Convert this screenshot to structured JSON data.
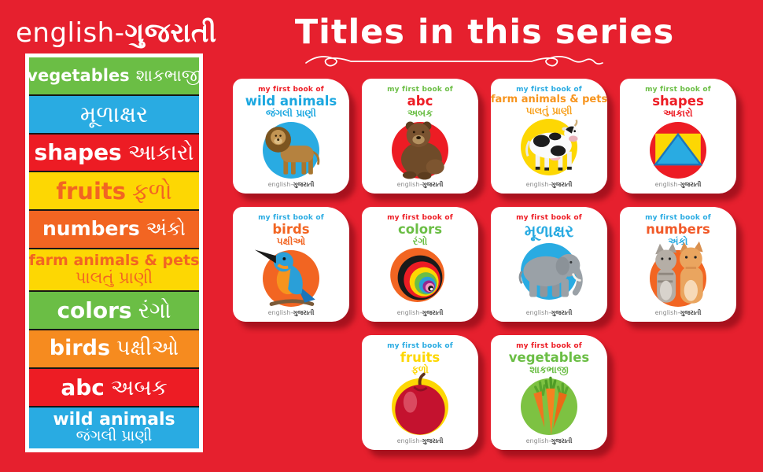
{
  "sidebar": {
    "header_en": "english-",
    "header_gu": "ગુજરાતી",
    "rows": [
      {
        "id": "vegetables",
        "en": "vegetables",
        "gu": "શાકભાજી",
        "bg": "#6bbe45",
        "color": "#ffffff",
        "two_line": false
      },
      {
        "id": "gujarati-alphabet",
        "en": "",
        "gu": "મૂળાક્ષર",
        "bg": "#29abe2",
        "color": "#ffffff",
        "two_line": false
      },
      {
        "id": "shapes",
        "en": "shapes",
        "gu": "આકારો",
        "bg": "#ed1c24",
        "color": "#ffffff",
        "two_line": false
      },
      {
        "id": "fruits",
        "en": "fruits",
        "gu": "ફળો",
        "bg": "#fdd703",
        "color": "#f26522",
        "two_line": false
      },
      {
        "id": "numbers",
        "en": "numbers",
        "gu": "અંકો",
        "bg": "#f26522",
        "color": "#ffffff",
        "two_line": false
      },
      {
        "id": "farm-animals-pets",
        "en": "farm animals & pets",
        "gu": "પાલતું પ્રાણી",
        "bg": "#fdd703",
        "color": "#f26522",
        "two_line": true
      },
      {
        "id": "colors",
        "en": "colors",
        "gu": "રંગો",
        "bg": "#6bbe45",
        "color": "#ffffff",
        "two_line": false
      },
      {
        "id": "birds",
        "en": "birds",
        "gu": "પક્ષીઓ",
        "bg": "#f68b1f",
        "color": "#ffffff",
        "two_line": false
      },
      {
        "id": "abc",
        "en": "abc",
        "gu": "અબક",
        "bg": "#ed1c24",
        "color": "#ffffff",
        "two_line": false
      },
      {
        "id": "wild-animals",
        "en": "wild animals",
        "gu": "જંગલી પ્રાણી",
        "bg": "#29abe2",
        "color": "#ffffff",
        "two_line": true
      }
    ]
  },
  "main": {
    "title": "Titles in this series",
    "book_footer_en": "english-",
    "book_footer_gu": "ગુજરાતી",
    "books": [
      {
        "id": "wild-animals",
        "tagline": "my first book of",
        "tagline_color": "#ed1c24",
        "title": "wild animals",
        "title_color": "#1ba7e0",
        "subtitle": "જંગલી પ્રાણી",
        "subtitle_color": "#1ba7e0",
        "circle_color": "#29abe2",
        "image": "lion"
      },
      {
        "id": "abc",
        "tagline": "my first book of",
        "tagline_color": "#6bbe45",
        "title": "abc",
        "title_color": "#ed1c24",
        "subtitle": "અબક",
        "subtitle_color": "#6bbe45",
        "circle_color": "#ed1c24",
        "image": "bear"
      },
      {
        "id": "farm-animals-pets",
        "tagline": "my first book of",
        "tagline_color": "#29abe2",
        "title": "farm animals & pets",
        "title_color": "#f7941d",
        "subtitle": "પાલતું પ્રાણી",
        "subtitle_color": "#f7a01d",
        "circle_color": "#fdd703",
        "image": "cow",
        "small_title": true
      },
      {
        "id": "shapes",
        "tagline": "my first book of",
        "tagline_color": "#6bbe45",
        "title": "shapes",
        "title_color": "#ed1c24",
        "subtitle": "આકારો",
        "subtitle_color": "#ed1c24",
        "circle_color": "#ed1c24",
        "image": "shapes"
      },
      {
        "id": "birds",
        "tagline": "my first book of",
        "tagline_color": "#29abe2",
        "title": "birds",
        "title_color": "#f26522",
        "subtitle": "પક્ષીઓ",
        "subtitle_color": "#f26522",
        "circle_color": "#f26522",
        "image": "kingfisher"
      },
      {
        "id": "colors",
        "tagline": "my first book of",
        "tagline_color": "#ed1c24",
        "title": "colors",
        "title_color": "#6bbe45",
        "subtitle": "રંગો",
        "subtitle_color": "#6bbe45",
        "circle_color": "none",
        "image": "color-rings"
      },
      {
        "id": "gujarati-alphabet",
        "tagline": "my first book of",
        "tagline_color": "#ed1c24",
        "title": "મૂળાક્ષર",
        "title_color": "#29abe2",
        "subtitle": "",
        "subtitle_color": "#29abe2",
        "circle_color": "#29abe2",
        "image": "elephant",
        "big_title": true
      },
      {
        "id": "numbers",
        "tagline": "my first book of",
        "tagline_color": "#29abe2",
        "title": "numbers",
        "title_color": "#f15a29",
        "subtitle": "અંકો",
        "subtitle_color": "#29abe2",
        "circle_color": "#f26522",
        "image": "kittens"
      },
      {
        "id": "fruits",
        "tagline": "my first book of",
        "tagline_color": "#29abe2",
        "title": "fruits",
        "title_color": "#fdd703",
        "subtitle": "ફળો",
        "subtitle_color": "#fdd703",
        "circle_color": "#fdd703",
        "image": "apple",
        "grid": {
          "row": 3,
          "col": 2
        }
      },
      {
        "id": "vegetables",
        "tagline": "my first book of",
        "tagline_color": "#ed1c24",
        "title": "vegetables",
        "title_color": "#6bbe45",
        "subtitle": "શાકભાજી",
        "subtitle_color": "#6bbe45",
        "circle_color": "#7dc242",
        "image": "carrots",
        "grid": {
          "row": 3,
          "col": 3
        }
      }
    ]
  }
}
